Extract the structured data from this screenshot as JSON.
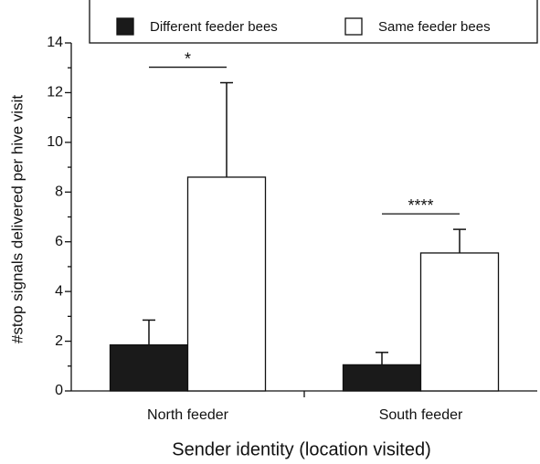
{
  "chart_data": {
    "type": "bar",
    "xlabel": "Sender identity (location visited)",
    "ylabel": "#stop signals delivered per hive visit",
    "categories": [
      "North feeder",
      "South feeder"
    ],
    "series": [
      {
        "name": "Different feeder bees",
        "color": "#1a1a1a",
        "values": [
          1.85,
          1.05
        ],
        "errors": [
          1.0,
          0.5
        ]
      },
      {
        "name": "Same feeder bees",
        "color": "#ffffff",
        "values": [
          8.6,
          5.55
        ],
        "errors": [
          3.8,
          0.95
        ]
      }
    ],
    "ylim": [
      0,
      14
    ],
    "yticks": [
      0,
      2,
      4,
      6,
      8,
      10,
      12,
      14
    ],
    "yminorticks": [
      1,
      3,
      5,
      7,
      9,
      11,
      13
    ],
    "annotations": [
      {
        "text": "*",
        "category": 0
      },
      {
        "text": "****",
        "category": 1
      }
    ],
    "legend": "top"
  }
}
